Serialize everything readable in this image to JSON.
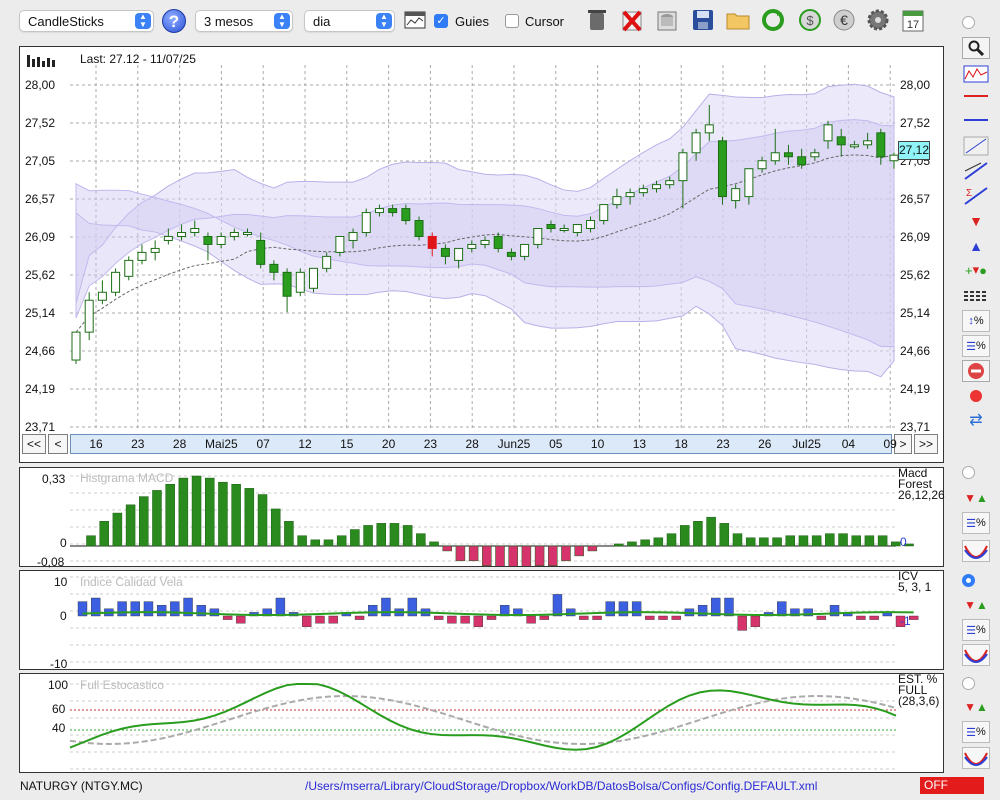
{
  "toolbar": {
    "chart_type": "CandleSticks",
    "period": "3 mesos",
    "interval": "dia",
    "guides_label": "Guies",
    "guides_checked": true,
    "cursor_label": "Cursor",
    "cursor_checked": false,
    "calendar_day": "17"
  },
  "main_chart": {
    "last_label": "Last: 27.12 - 11/07/25",
    "y_ticks": [
      "28,00",
      "27,52",
      "27,05",
      "26,57",
      "26,09",
      "25,62",
      "25,14",
      "24,66",
      "24,19",
      "23,71"
    ],
    "current_price": "27,12",
    "x_ticks": [
      "16",
      "23",
      "28",
      "Mai25",
      "07",
      "12",
      "15",
      "20",
      "23",
      "28",
      "Jun25",
      "05",
      "10",
      "13",
      "18",
      "23",
      "26",
      "Jul25",
      "04",
      "09"
    ],
    "nav": {
      "first": "<<",
      "prev": "<",
      "next": ">",
      "last": ">>"
    }
  },
  "macd_panel": {
    "title": "Histgrama MACD",
    "y_ticks": [
      "0,33",
      "0",
      "-0,08"
    ],
    "legend": [
      "Macd",
      "Forest",
      "26,12,26"
    ],
    "value": "0"
  },
  "icv_panel": {
    "title": "Indice Calidad Vela",
    "y_ticks": [
      "10",
      "0",
      "-10"
    ],
    "legend": [
      "ICV",
      "5, 3, 1"
    ],
    "value": "-1"
  },
  "stoch_panel": {
    "title": "Full Estocastico",
    "y_ticks": [
      "100",
      "60",
      "40"
    ],
    "legend": [
      "EST. %",
      "FULL",
      "(28,3,6)"
    ]
  },
  "status": {
    "symbol": "NATURGY (NTGY.MC)",
    "path": "/Users/mserra/Library/CloudStorage/Dropbox/WorkDB/DatosBolsa/Configs/Config.DEFAULT.xml",
    "state": "OFF"
  },
  "colors": {
    "up": "#2a9d1f",
    "down": "#2a8a1e",
    "highlight": "#e01616",
    "band": "#ddd8f6",
    "blue_bar": "#3b5fe0",
    "red_bar": "#d6336c",
    "stoch_fast": "#2a9d1f",
    "stoch_slow": "#aaaaaa",
    "accent": "#3b82f6"
  },
  "chart_data": {
    "type": "candlestick",
    "ylim": [
      23.71,
      28.0
    ],
    "candles": [
      [
        24.55,
        24.9,
        24.5,
        24.9
      ],
      [
        24.9,
        25.4,
        24.8,
        25.3
      ],
      [
        25.3,
        25.55,
        25.25,
        25.4
      ],
      [
        25.4,
        25.7,
        25.35,
        25.65
      ],
      [
        25.6,
        25.85,
        25.55,
        25.8
      ],
      [
        25.8,
        26.0,
        25.75,
        25.9
      ],
      [
        25.9,
        26.05,
        25.8,
        25.95
      ],
      [
        26.05,
        26.2,
        26.0,
        26.1
      ],
      [
        26.1,
        26.25,
        26.05,
        26.15
      ],
      [
        26.15,
        26.3,
        26.1,
        26.2
      ],
      [
        26.1,
        26.15,
        25.8,
        26.0
      ],
      [
        26.0,
        26.15,
        25.95,
        26.1
      ],
      [
        26.1,
        26.2,
        26.05,
        26.15
      ],
      [
        26.15,
        26.2,
        26.1,
        26.15
      ],
      [
        26.05,
        26.15,
        25.7,
        25.75
      ],
      [
        25.75,
        25.8,
        25.55,
        25.65
      ],
      [
        25.65,
        25.7,
        25.15,
        25.35
      ],
      [
        25.4,
        25.7,
        25.35,
        25.65
      ],
      [
        25.45,
        25.7,
        25.4,
        25.7
      ],
      [
        25.7,
        25.9,
        25.65,
        25.85
      ],
      [
        25.9,
        26.1,
        25.85,
        26.1
      ],
      [
        26.05,
        26.2,
        25.95,
        26.15
      ],
      [
        26.15,
        26.45,
        26.1,
        26.4
      ],
      [
        26.4,
        26.5,
        26.35,
        26.45
      ],
      [
        26.45,
        26.5,
        26.35,
        26.4
      ],
      [
        26.45,
        26.5,
        26.25,
        26.3
      ],
      [
        26.3,
        26.35,
        26.05,
        26.1
      ],
      [
        26.1,
        26.15,
        25.85,
        25.95
      ],
      [
        25.95,
        26.0,
        25.75,
        25.85
      ],
      [
        25.8,
        25.95,
        25.7,
        25.95
      ],
      [
        25.95,
        26.05,
        25.9,
        26.0
      ],
      [
        26.0,
        26.1,
        25.95,
        26.05
      ],
      [
        26.1,
        26.15,
        25.9,
        25.95
      ],
      [
        25.9,
        25.95,
        25.8,
        25.85
      ],
      [
        25.85,
        26.0,
        25.8,
        26.0
      ],
      [
        26.0,
        26.2,
        25.95,
        26.2
      ],
      [
        26.25,
        26.3,
        26.15,
        26.2
      ],
      [
        26.2,
        26.25,
        26.15,
        26.2
      ],
      [
        26.15,
        26.25,
        26.1,
        26.25
      ],
      [
        26.2,
        26.35,
        26.15,
        26.3
      ],
      [
        26.3,
        26.5,
        26.25,
        26.5
      ],
      [
        26.5,
        26.7,
        26.45,
        26.6
      ],
      [
        26.6,
        26.7,
        26.5,
        26.65
      ],
      [
        26.65,
        26.75,
        26.6,
        26.7
      ],
      [
        26.7,
        26.8,
        26.65,
        26.75
      ],
      [
        26.75,
        26.85,
        26.7,
        26.8
      ],
      [
        26.8,
        27.2,
        26.45,
        27.15
      ],
      [
        27.15,
        27.45,
        27.05,
        27.4
      ],
      [
        27.4,
        27.75,
        27.3,
        27.5
      ],
      [
        27.3,
        27.35,
        26.5,
        26.6
      ],
      [
        26.55,
        26.75,
        26.45,
        26.7
      ],
      [
        26.6,
        26.95,
        26.5,
        26.95
      ],
      [
        26.95,
        27.1,
        26.9,
        27.05
      ],
      [
        27.05,
        27.45,
        27.0,
        27.15
      ],
      [
        27.15,
        27.25,
        27.0,
        27.1
      ],
      [
        27.1,
        27.2,
        26.95,
        27.0
      ],
      [
        27.1,
        27.2,
        27.05,
        27.15
      ],
      [
        27.3,
        27.55,
        27.2,
        27.5
      ],
      [
        27.35,
        27.45,
        27.1,
        27.25
      ],
      [
        27.25,
        27.3,
        27.2,
        27.25
      ],
      [
        27.25,
        27.4,
        27.2,
        27.3
      ],
      [
        27.4,
        27.45,
        27.0,
        27.1
      ],
      [
        27.05,
        27.15,
        26.95,
        27.12
      ]
    ],
    "highlight_index": 27
  }
}
